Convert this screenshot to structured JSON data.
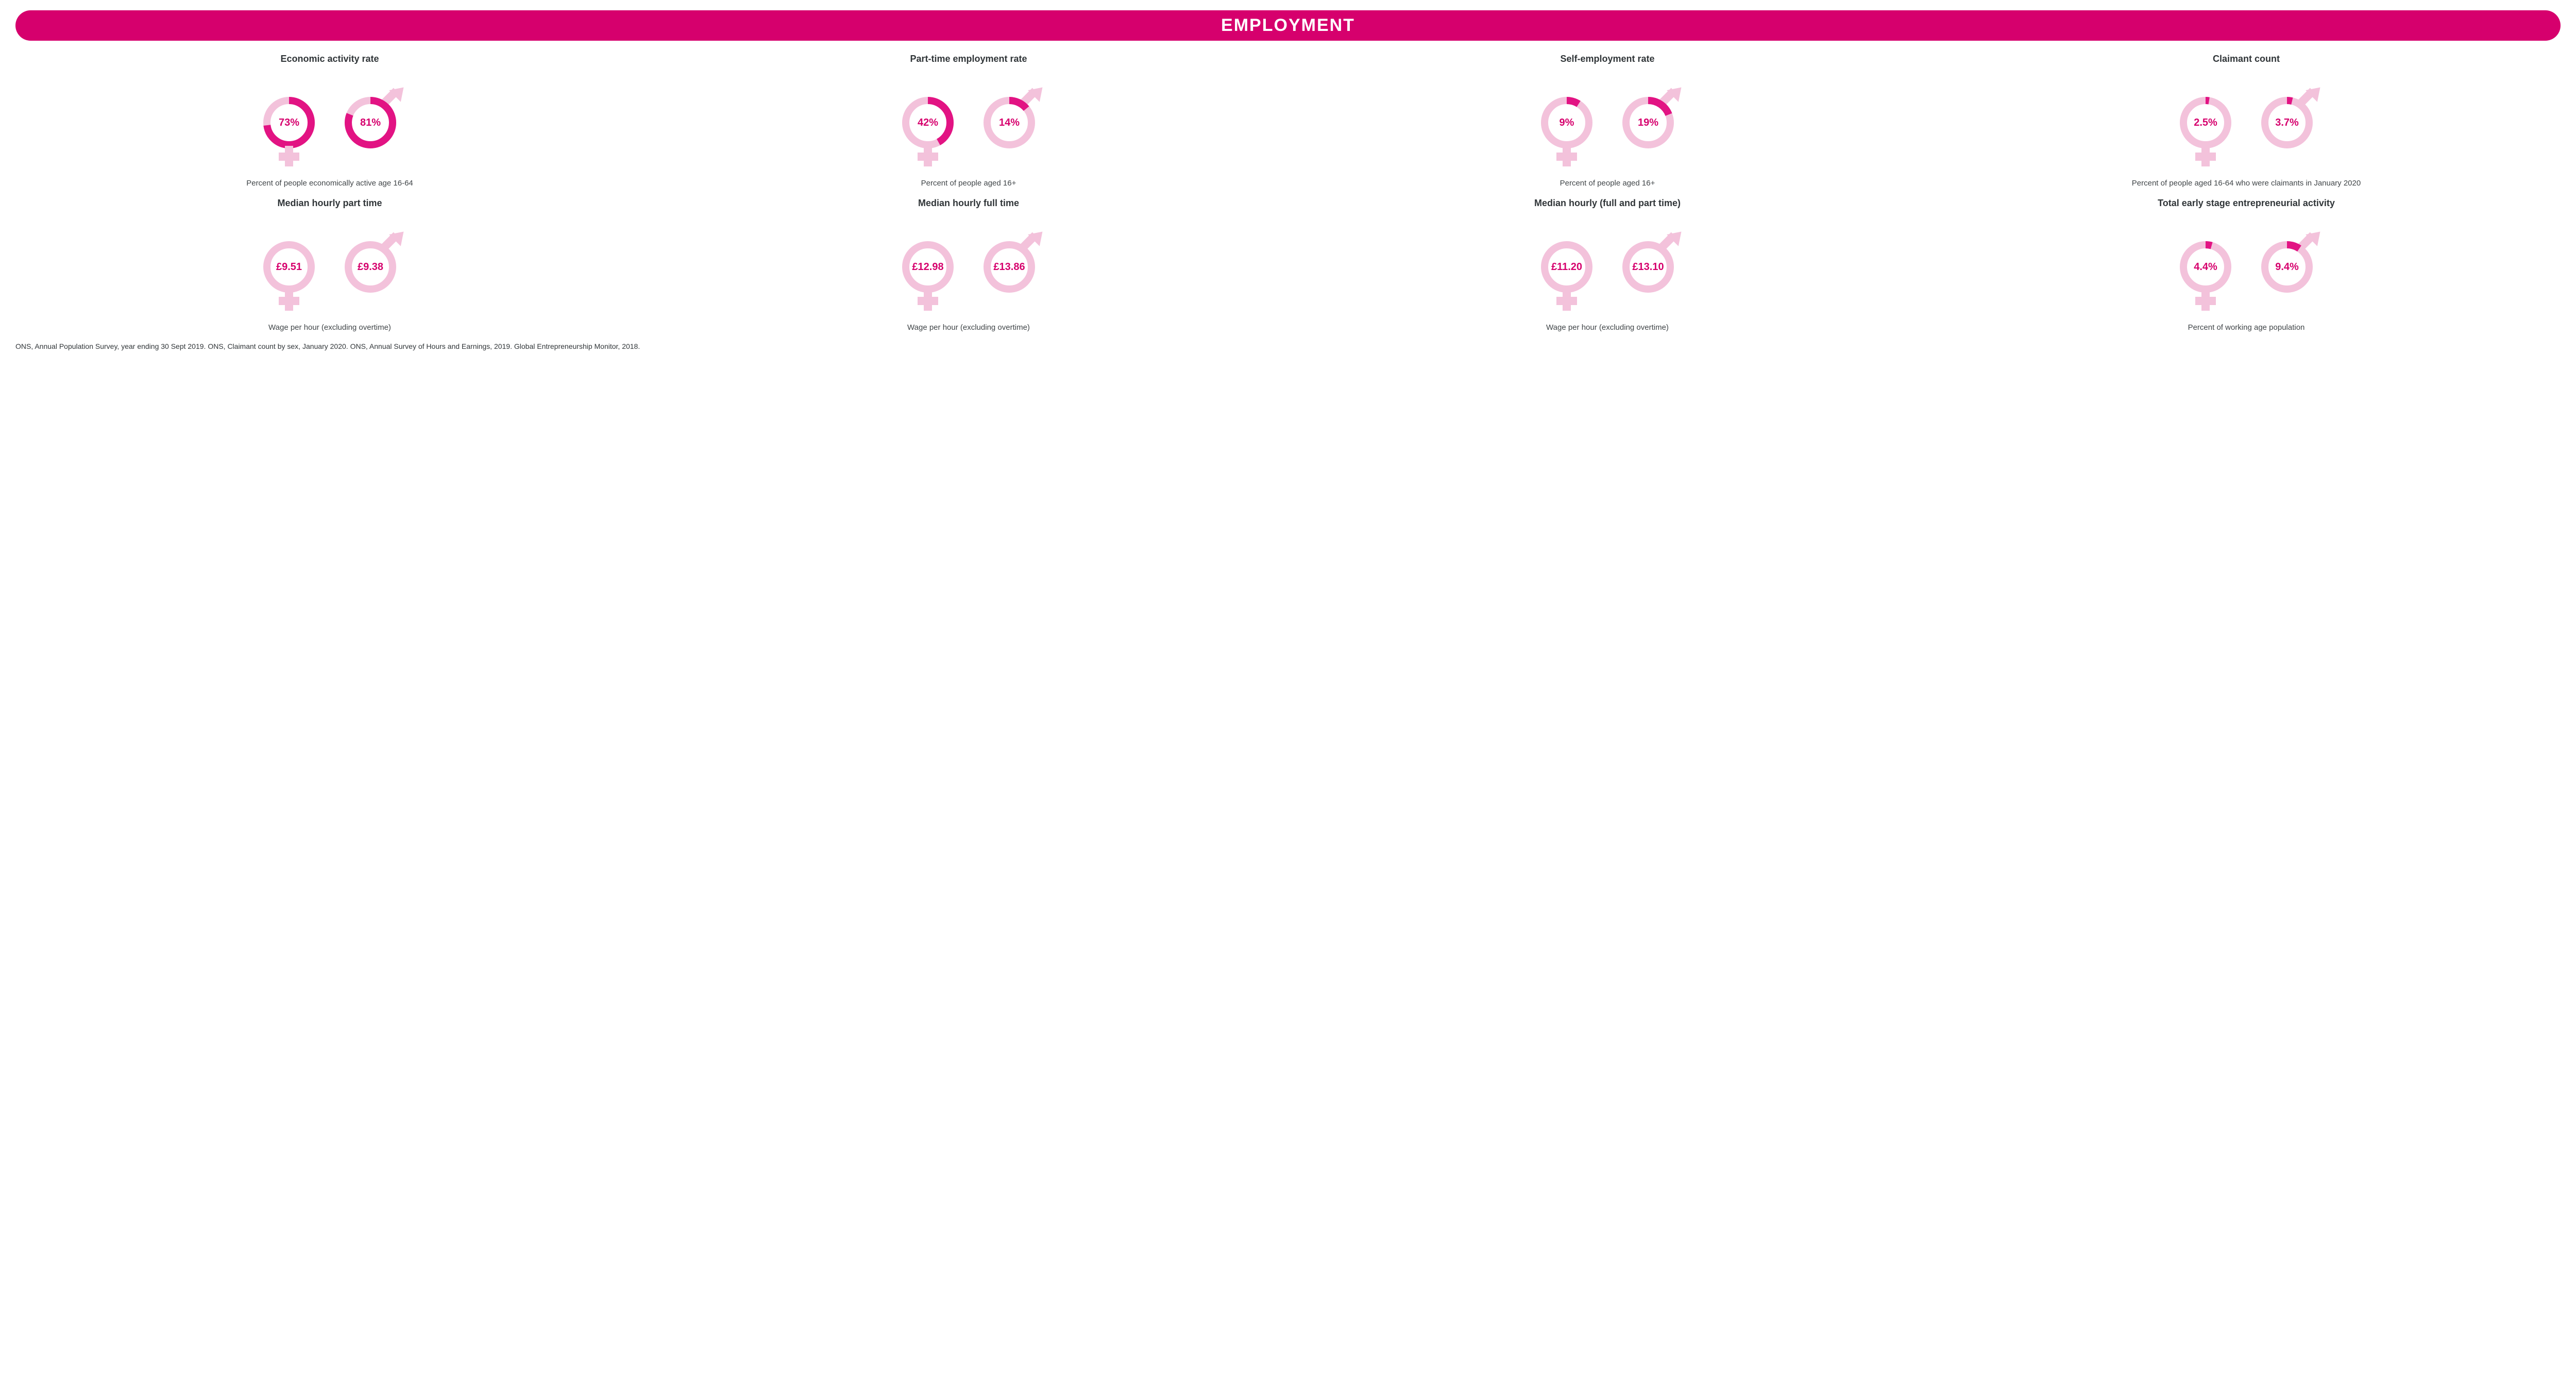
{
  "colors": {
    "header_bg": "#d6006d",
    "header_text": "#ffffff",
    "title_text": "#303538",
    "caption_text": "#404548",
    "footnote_text": "#303538",
    "donut_track": "#f3c2db",
    "donut_fill": "#e21383",
    "symbol_light": "#f3c2db",
    "value_text": "#d6006d"
  },
  "typography": {
    "header_fontsize": 34,
    "title_fontsize": 18,
    "value_fontsize": 20,
    "caption_fontsize": 15,
    "footnote_fontsize": 14
  },
  "header": {
    "title": "EMPLOYMENT"
  },
  "cards": [
    {
      "title": "Economic activity rate",
      "female": {
        "label": "73%",
        "fill_pct": 73
      },
      "male": {
        "label": "81%",
        "fill_pct": 81
      },
      "caption": "Percent of people economically active age 16-64"
    },
    {
      "title": "Part-time employment rate",
      "female": {
        "label": "42%",
        "fill_pct": 42
      },
      "male": {
        "label": "14%",
        "fill_pct": 14
      },
      "caption": "Percent of people aged 16+"
    },
    {
      "title": "Self-employment rate",
      "female": {
        "label": "9%",
        "fill_pct": 9
      },
      "male": {
        "label": "19%",
        "fill_pct": 19
      },
      "caption": "Percent of people aged 16+"
    },
    {
      "title": "Claimant count",
      "female": {
        "label": "2.5%",
        "fill_pct": 2.5
      },
      "male": {
        "label": "3.7%",
        "fill_pct": 3.7
      },
      "caption": "Percent of people aged 16-64 who were claimants in January 2020"
    },
    {
      "title": "Median hourly part time",
      "female": {
        "label": "£9.51",
        "fill_pct": 0
      },
      "male": {
        "label": "£9.38",
        "fill_pct": 0
      },
      "caption": "Wage per hour (excluding overtime)"
    },
    {
      "title": "Median hourly full time",
      "female": {
        "label": "£12.98",
        "fill_pct": 0
      },
      "male": {
        "label": "£13.86",
        "fill_pct": 0
      },
      "caption": "Wage per hour (excluding overtime)"
    },
    {
      "title": "Median hourly (full and part time)",
      "female": {
        "label": "£11.20",
        "fill_pct": 0
      },
      "male": {
        "label": "£13.10",
        "fill_pct": 0
      },
      "caption": "Wage per hour (excluding overtime)"
    },
    {
      "title": "Total early stage entrepreneurial activity",
      "female": {
        "label": "4.4%",
        "fill_pct": 4.4
      },
      "male": {
        "label": "9.4%",
        "fill_pct": 9.4
      },
      "caption": "Percent of working age population"
    }
  ],
  "footnote": "ONS, Annual Population Survey, year ending 30 Sept 2019. ONS, Claimant count by sex, January 2020. ONS, Annual Survey of Hours and Earnings, 2019. Global Entrepreneurship Monitor, 2018."
}
